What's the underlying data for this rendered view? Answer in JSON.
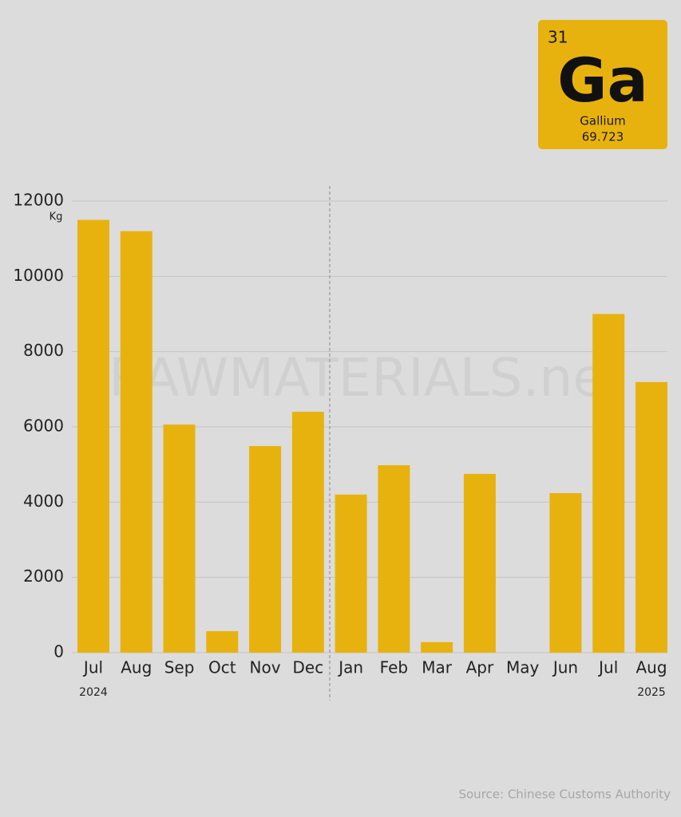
{
  "chart_data": {
    "type": "bar",
    "categories": [
      "Jul",
      "Aug",
      "Sep",
      "Oct",
      "Nov",
      "Dec",
      "Jan",
      "Feb",
      "Mar",
      "Apr",
      "May",
      "Jun",
      "Jul",
      "Aug"
    ],
    "values": [
      11500,
      11200,
      6060,
      570,
      5490,
      6400,
      4200,
      4980,
      280,
      4750,
      0,
      4240,
      9000,
      7190
    ],
    "color": "#e8b20e",
    "year_labels": [
      "2024",
      "2025"
    ],
    "y_unit": "Kg",
    "ylim": [
      0,
      12000
    ],
    "yticks": [
      0,
      2000,
      4000,
      6000,
      8000,
      10000,
      12000
    ],
    "grid": true,
    "watermark": "RAWMATERIALS.net",
    "source": "Source: Chinese Customs Authority"
  },
  "element": {
    "number": 31,
    "symbol": "Ga",
    "name": "Gallium",
    "mass": 69.723
  }
}
